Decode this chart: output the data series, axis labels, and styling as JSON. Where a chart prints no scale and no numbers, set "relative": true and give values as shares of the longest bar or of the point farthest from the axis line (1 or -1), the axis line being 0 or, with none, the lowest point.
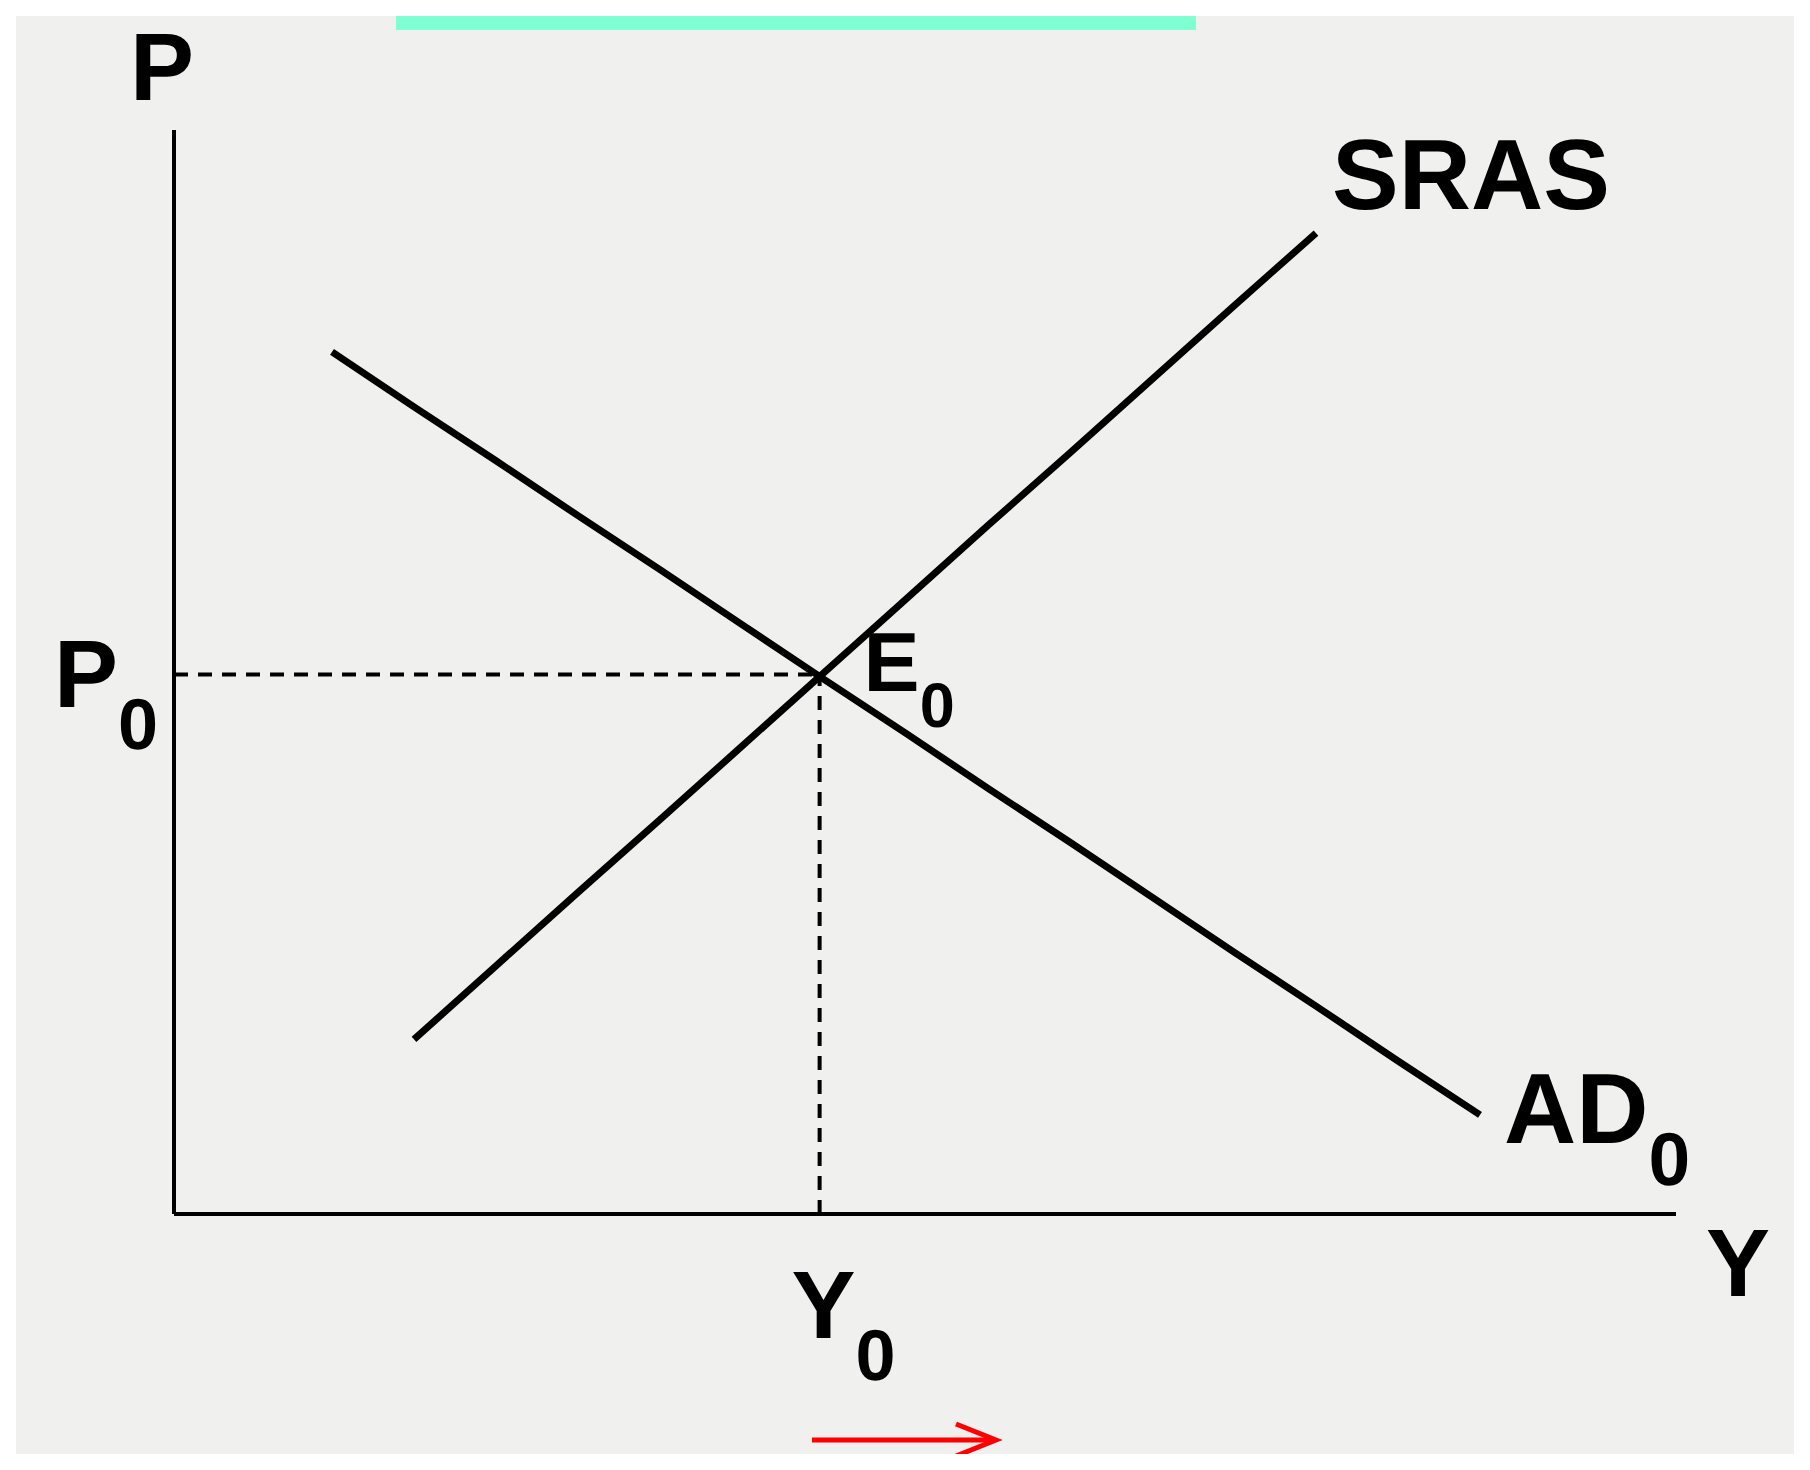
{
  "chart_data": {
    "type": "line",
    "relative": true,
    "xlabel": "Y",
    "ylabel": "P",
    "line_style": "solid",
    "categories": [
      null,
      null,
      null,
      null,
      null,
      null,
      null,
      null,
      null,
      null,
      null,
      null,
      null,
      null,
      null
    ],
    "series": [
      {
        "name": "SRAS",
        "color": "#000000",
        "values": [
          null,
          0.178,
          0.253,
          0.328,
          0.402,
          0.477,
          0.552,
          0.627,
          0.702,
          0.776,
          0.851,
          0.926,
          1,
          null,
          null
        ]
      },
      {
        "name": "AD$_{0}$",
        "color": "#000000",
        "values": [
          0.879,
          0.823,
          0.768,
          0.712,
          0.657,
          0.601,
          0.545,
          0.49,
          0.434,
          0.379,
          0.323,
          0.267,
          0.212,
          0.156,
          0.101
        ]
      }
    ],
    "ref_lines": [
      {
        "axis": "y",
        "value": 0.55,
        "label": "P$_{0}$",
        "color": "#000000",
        "line_style": "dashed"
      }
    ],
    "annotations": [
      "E$_{0}$",
      "Y$_{0}$"
    ]
  }
}
